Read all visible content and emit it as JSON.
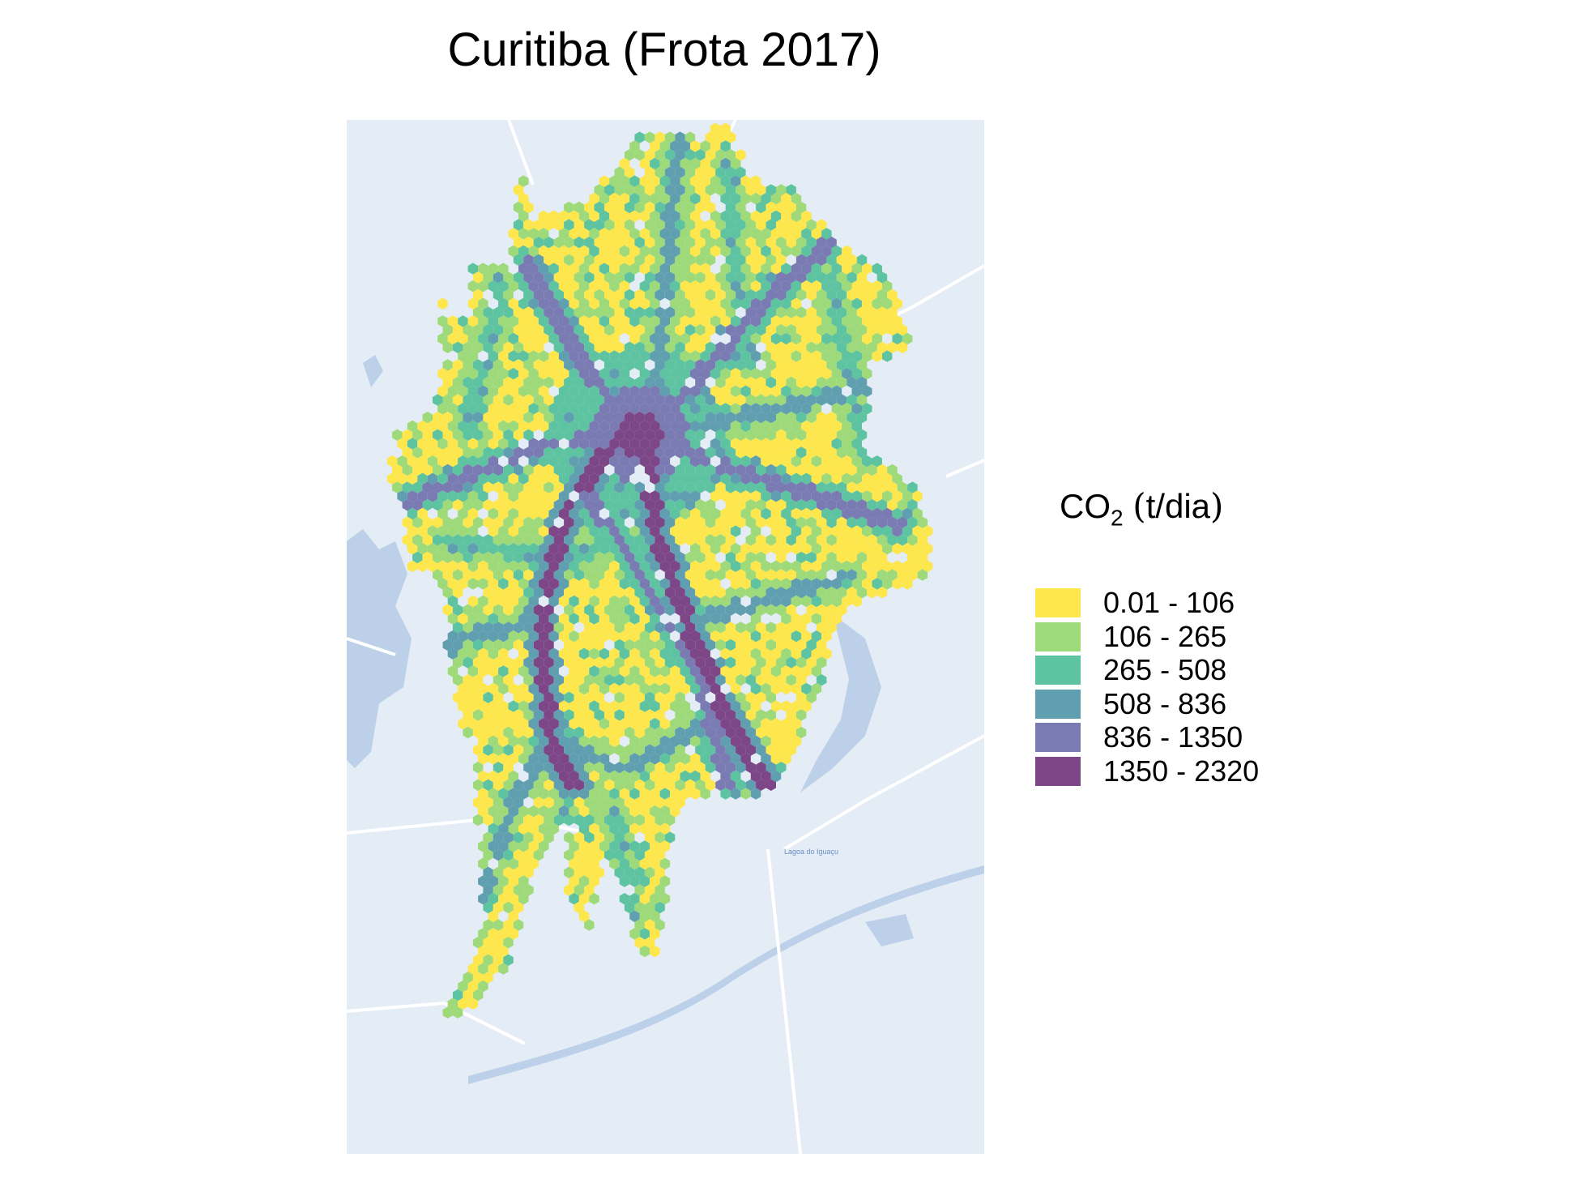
{
  "title": "Curitiba (Frota 2017)",
  "map": {
    "background_color": "#e4ecf5",
    "water_color": "#bcd0ea",
    "road_color": "#ffffff",
    "water_label": "Lagoa do Iguaçu"
  },
  "legend": {
    "title_main": "CO",
    "title_sub": "2",
    "title_unit": "t/dia",
    "items": [
      {
        "label": "0.01 - 106",
        "color": "#fde74c"
      },
      {
        "label": "106 - 265",
        "color": "#9fda7a"
      },
      {
        "label": "265 - 508",
        "color": "#5ec3a0"
      },
      {
        "label": "508 - 836",
        "color": "#609fb0"
      },
      {
        "label": "836 - 1350",
        "color": "#7a7bb2"
      },
      {
        "label": "1350 - 2320",
        "color": "#7d4687"
      }
    ]
  }
}
